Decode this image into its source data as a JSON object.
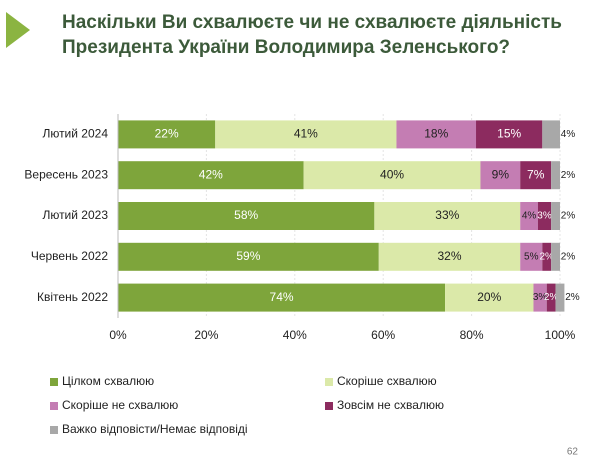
{
  "chart_data": {
    "type": "stacked-bar-horizontal",
    "title": [
      "Наскільки Ви схвалюєте чи не схвалюєте діяльність",
      "Президента України Володимира Зеленського?"
    ],
    "categories": [
      "Лютий 2024",
      "Вересень 2023",
      "Лютий 2023",
      "Червень 2022",
      "Квітень 2022"
    ],
    "series": [
      {
        "name": "Цілком схвалюю",
        "color": "#7ea53b",
        "values": [
          22,
          42,
          58,
          59,
          74
        ],
        "value_labels": [
          "22%",
          "42%",
          "58%",
          "59%",
          "74%"
        ]
      },
      {
        "name": "Скоріше схвалюю",
        "color": "#dbe9a9",
        "values": [
          41,
          40,
          33,
          32,
          20
        ],
        "value_labels": [
          "41%",
          "40%",
          "33%",
          "32%",
          "20%"
        ]
      },
      {
        "name": "Скоріше не схвалюю",
        "color": "#c47db3",
        "values": [
          18,
          9,
          4,
          5,
          3
        ],
        "value_labels": [
          "18%",
          "9%",
          "4%",
          "5%",
          "3%"
        ]
      },
      {
        "name": "Зовсім не схвалюю",
        "color": "#8c2b5f",
        "values": [
          15,
          7,
          3,
          2,
          2
        ],
        "value_labels": [
          "15%",
          "7%",
          "3%",
          "2%",
          "2%"
        ]
      },
      {
        "name": "Важко відповісти/Немає відповіді",
        "color": "#a8a8a8",
        "values": [
          4,
          2,
          2,
          2,
          2
        ],
        "value_labels": [
          "4%",
          "2%",
          "2%",
          "2%",
          "2%"
        ]
      }
    ],
    "xlim": [
      0,
      100
    ],
    "xticks": [
      {
        "value": 0,
        "label": "0%"
      },
      {
        "value": 20,
        "label": "20%"
      },
      {
        "value": 40,
        "label": "40%"
      },
      {
        "value": 60,
        "label": "60%"
      },
      {
        "value": 80,
        "label": "80%"
      },
      {
        "value": 100,
        "label": "100%"
      }
    ],
    "grid": true
  },
  "page_number": "62"
}
